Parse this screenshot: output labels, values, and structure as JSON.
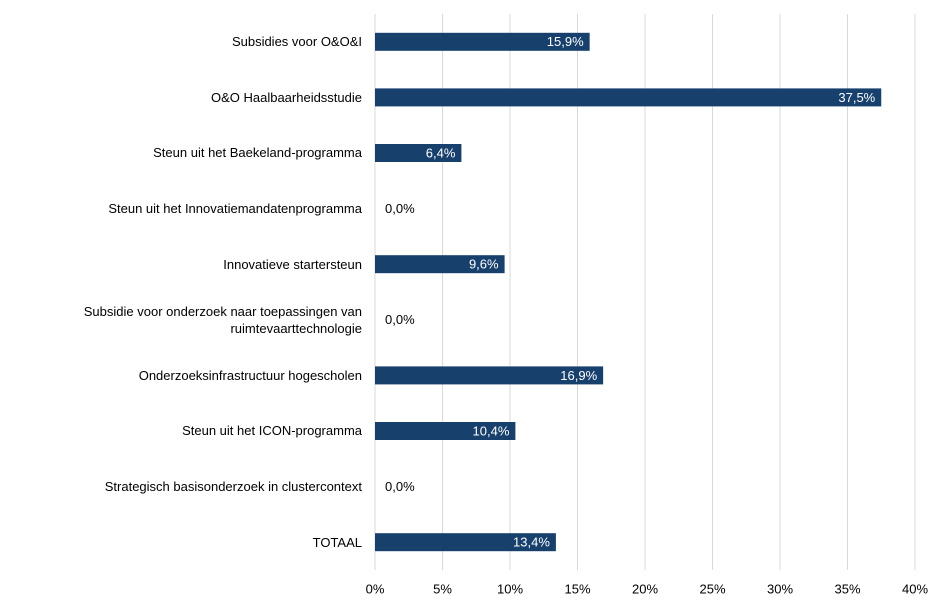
{
  "chart_data": {
    "type": "hbar",
    "categories": [
      "Subsidies voor O&O&I",
      "O&O Haalbaarheidsstudie",
      "Steun uit het Baekeland-programma",
      "Steun uit het Innovatiemandatenprogramma",
      "Innovatieve startersteun",
      "Subsidie voor onderzoek naar toepassingen van ruimtevaarttechnologie",
      "Onderzoeksinfrastructuur hogescholen",
      "Steun uit het ICON-programma",
      "Strategisch basisonderzoek in clustercontext",
      "TOTAAL"
    ],
    "values": [
      15.9,
      37.5,
      6.4,
      0,
      9.6,
      0,
      16.9,
      10.4,
      0,
      13.4
    ],
    "value_labels": [
      "15,9%",
      "37,5%",
      "6,4%",
      "0,0%",
      "9,6%",
      "0,0%",
      "16,9%",
      "10,4%",
      "0,0%",
      "13,4%"
    ],
    "color": "#17406d",
    "xlim": [
      0,
      40
    ],
    "xticks": [
      {
        "value": 0,
        "label": "0%"
      },
      {
        "value": 5,
        "label": "5%"
      },
      {
        "value": 10,
        "label": "10%"
      },
      {
        "value": 15,
        "label": "15%"
      },
      {
        "value": 20,
        "label": "20%"
      },
      {
        "value": 25,
        "label": "25%"
      },
      {
        "value": 30,
        "label": "30%"
      },
      {
        "value": 35,
        "label": "35%"
      },
      {
        "value": 40,
        "label": "40%"
      }
    ],
    "grid": true
  }
}
